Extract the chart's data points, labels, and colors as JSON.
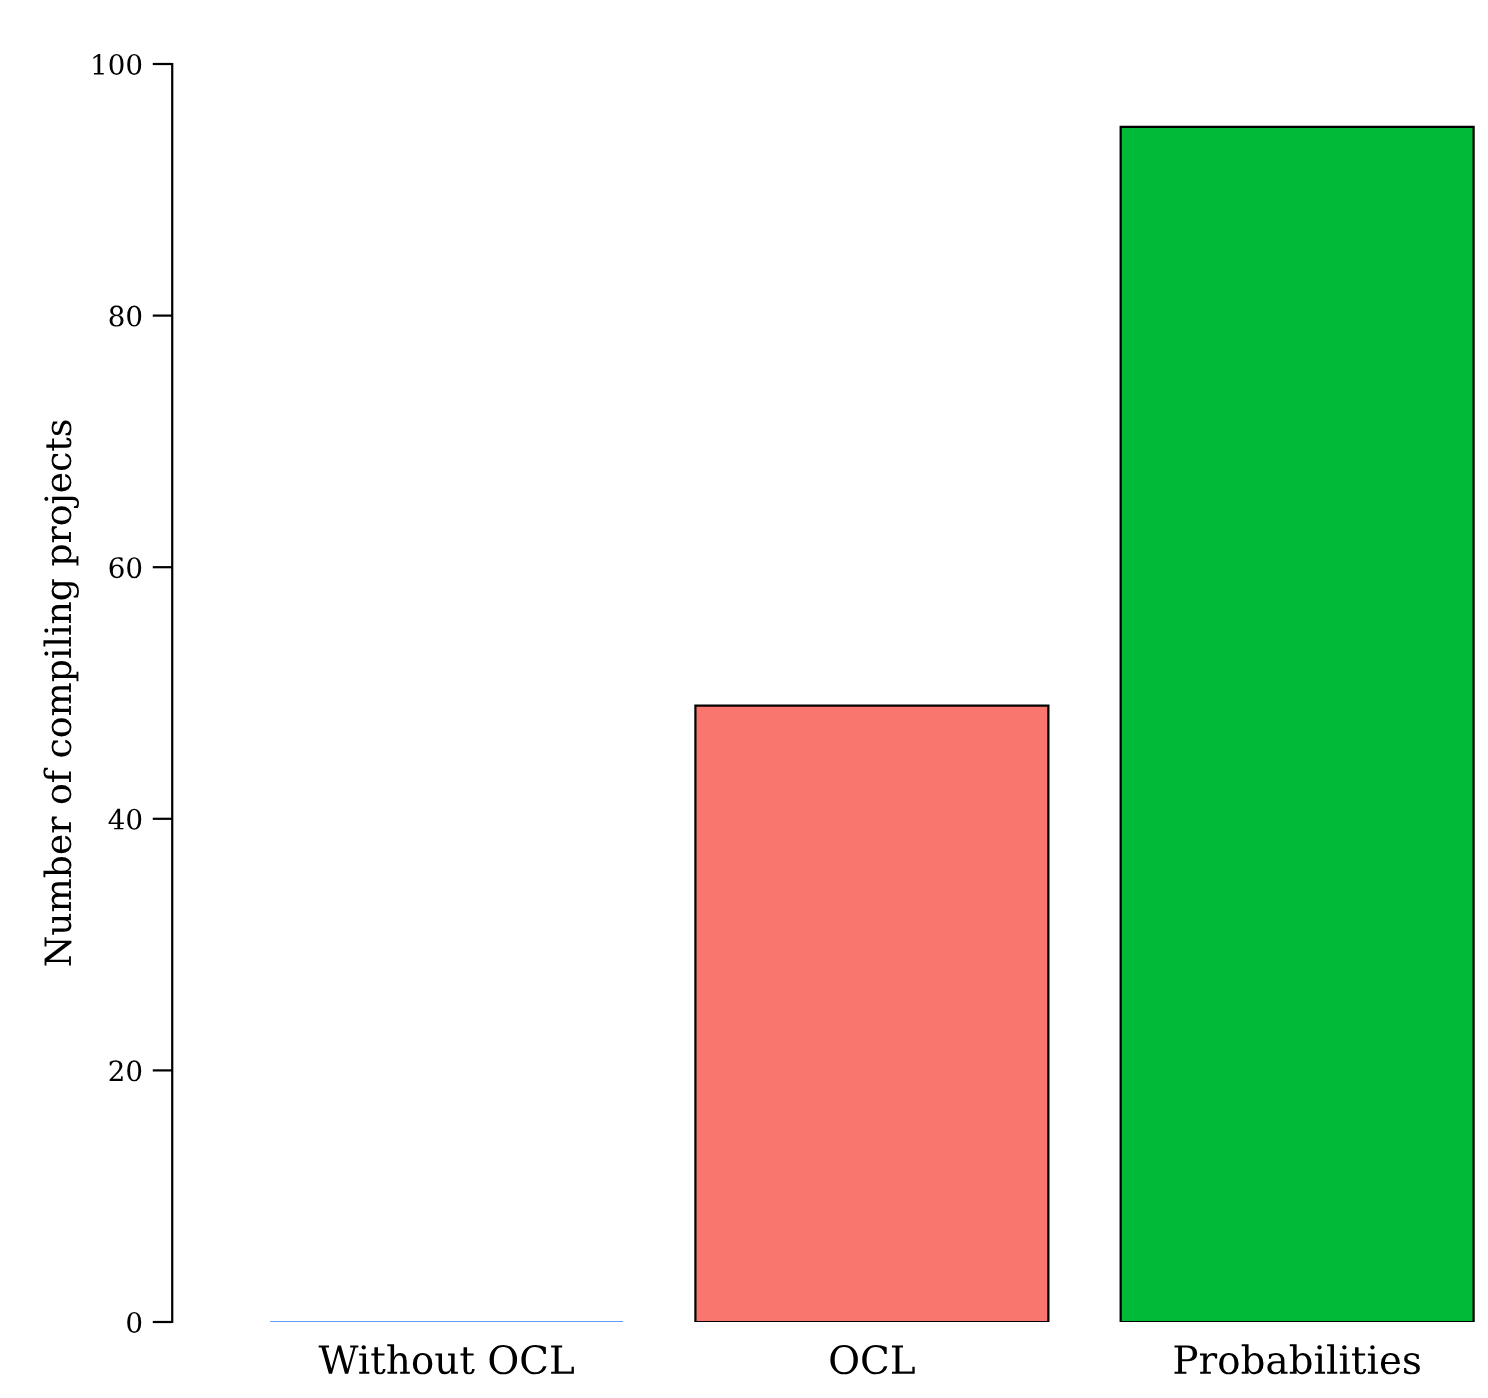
{
  "chart_data": {
    "type": "bar",
    "ylabel": "Number of compiling projects",
    "categories": [
      "Without OCL",
      "OCL",
      "Probabilities"
    ],
    "values": [
      0,
      49,
      95
    ],
    "colors": [
      "#619cff",
      "#f8766d",
      "#00ba38"
    ],
    "ylim": [
      0,
      100
    ],
    "yticks": [
      0,
      20,
      40,
      60,
      80,
      100
    ],
    "grid": false
  }
}
